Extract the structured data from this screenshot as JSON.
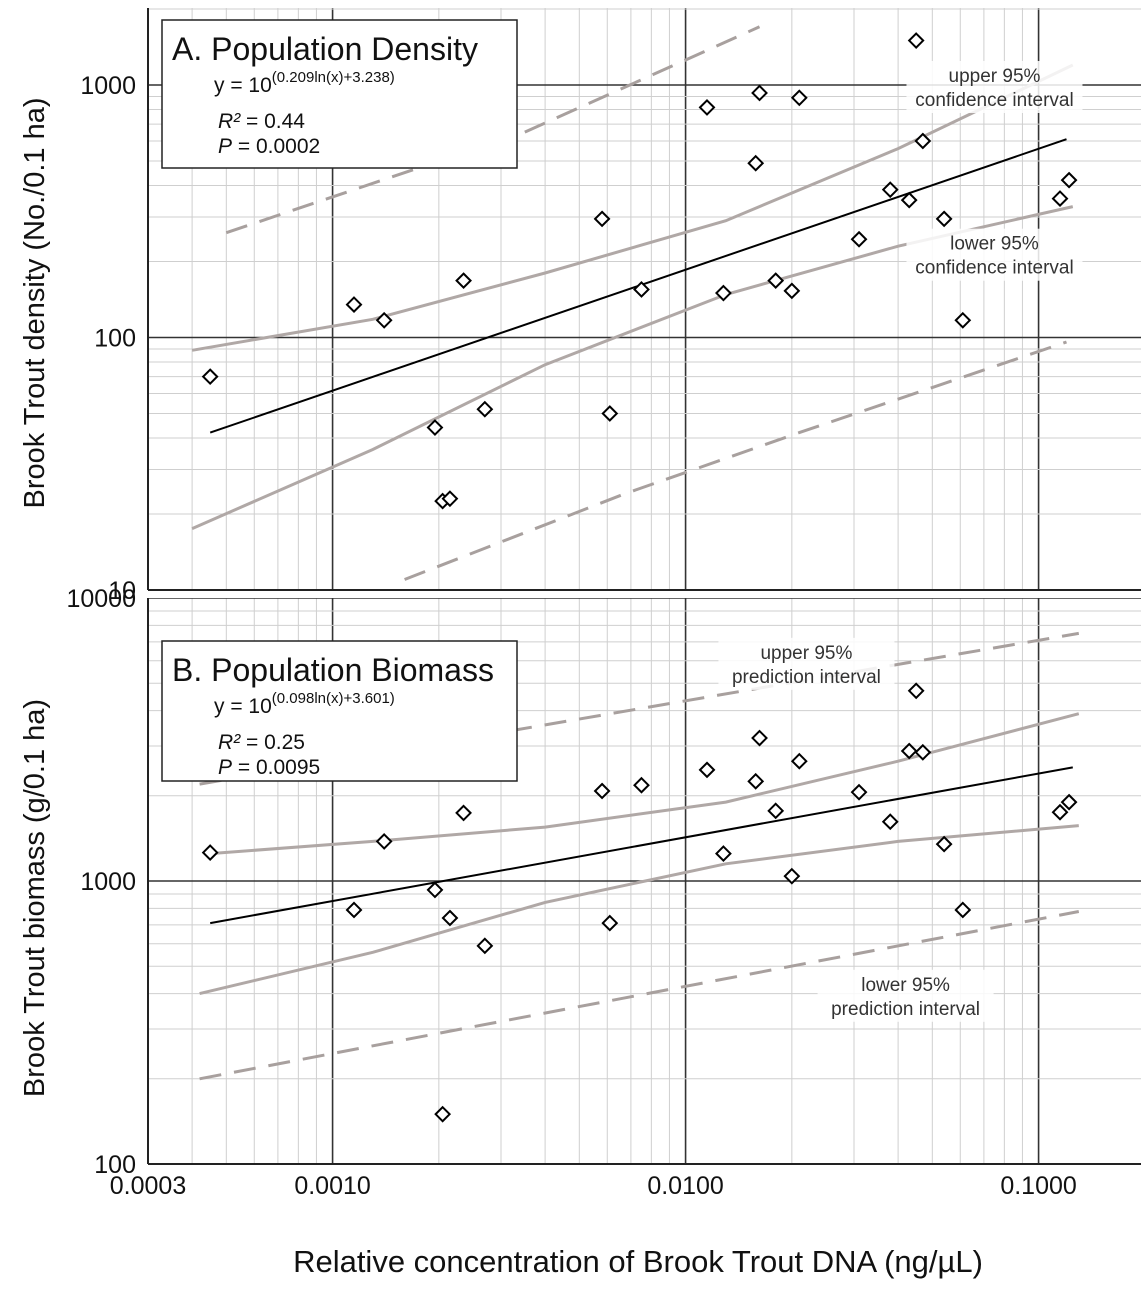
{
  "chart_data": [
    {
      "type": "scatter",
      "panel": "A",
      "title": "A. Population Density",
      "equation": {
        "prefix": "y = 10",
        "exponent": "(0.209ln(x)+3.238)"
      },
      "stats": {
        "r2_label": "R²",
        "r2_value": "= 0.44",
        "p_label": "P",
        "p_value": "= 0.0002"
      },
      "ylabel": "Brook Trout density (No./0.1 ha)",
      "xlabel": "",
      "xscale": "log",
      "yscale": "log",
      "xlim": [
        0.0003,
        0.15
      ],
      "ylim": [
        10,
        2000
      ],
      "ytick_labels": [
        "10",
        "100",
        "1000"
      ],
      "ytick_values": [
        10,
        100,
        1000
      ],
      "grid": true,
      "annotations": [
        {
          "lines": [
            "upper 95%",
            "confidence interval"
          ],
          "x": 0.075,
          "y": 1200
        },
        {
          "lines": [
            "lower 95%",
            "confidence interval"
          ],
          "x": 0.075,
          "y": 260
        }
      ],
      "points": [
        [
          0.00045,
          70
        ],
        [
          0.00115,
          135
        ],
        [
          0.0014,
          117
        ],
        [
          0.00195,
          44
        ],
        [
          0.00205,
          22.5
        ],
        [
          0.00215,
          23
        ],
        [
          0.00235,
          168
        ],
        [
          0.0027,
          52
        ],
        [
          0.0058,
          295
        ],
        [
          0.0061,
          50
        ],
        [
          0.0075,
          155
        ],
        [
          0.0115,
          815
        ],
        [
          0.0128,
          150
        ],
        [
          0.0158,
          490
        ],
        [
          0.0162,
          930
        ],
        [
          0.018,
          168
        ],
        [
          0.02,
          153
        ],
        [
          0.021,
          890
        ],
        [
          0.031,
          245
        ],
        [
          0.038,
          385
        ],
        [
          0.043,
          350
        ],
        [
          0.045,
          1500
        ],
        [
          0.047,
          600
        ],
        [
          0.054,
          295
        ],
        [
          0.061,
          117
        ],
        [
          0.115,
          355
        ],
        [
          0.122,
          420
        ]
      ],
      "series": [
        {
          "role": "regression",
          "x": [
            0.00045,
            0.12
          ],
          "y": [
            42,
            610
          ]
        },
        {
          "role": "upper_confidence",
          "x": [
            0.0004,
            0.0013,
            0.004,
            0.013,
            0.04,
            0.125
          ],
          "y": [
            89,
            118,
            180,
            290,
            560,
            1200
          ]
        },
        {
          "role": "lower_confidence",
          "x": [
            0.0004,
            0.0013,
            0.004,
            0.013,
            0.04,
            0.125
          ],
          "y": [
            17.5,
            36,
            78,
            148,
            230,
            330
          ]
        },
        {
          "role": "upper_prediction",
          "x": [
            0.0005,
            0.0035,
            0.0162
          ],
          "y": [
            260,
            650,
            1700
          ]
        },
        {
          "role": "lower_prediction",
          "x": [
            0.0016,
            0.0067,
            0.021,
            0.12
          ],
          "y": [
            11,
            24,
            42,
            96
          ]
        }
      ]
    },
    {
      "type": "scatter",
      "panel": "B",
      "title": "B. Population Biomass",
      "equation": {
        "prefix": "y = 10",
        "exponent": "(0.098ln(x)+3.601)"
      },
      "stats": {
        "r2_label": "R²",
        "r2_value": "= 0.25",
        "p_label": "P",
        "p_value": "= 0.0095"
      },
      "ylabel": "Brook Trout biomass (g/0.1 ha)",
      "xlabel": "Relative concentration of Brook Trout DNA (ng/µL)",
      "xscale": "log",
      "yscale": "log",
      "xlim": [
        0.0003,
        0.15
      ],
      "ylim": [
        100,
        10000
      ],
      "ytick_labels": [
        "100",
        "1000",
        "10000"
      ],
      "ytick_values": [
        100,
        1000,
        10000
      ],
      "xtick_labels": [
        "0.0003",
        "0.0010",
        "0.0100",
        "0.1000"
      ],
      "xtick_values": [
        0.0003,
        0.001,
        0.01,
        0.1
      ],
      "grid": true,
      "annotations": [
        {
          "lines": [
            "upper 95%",
            "prediction interval"
          ],
          "x": 0.022,
          "y": 7000
        },
        {
          "lines": [
            "lower 95%",
            "prediction interval"
          ],
          "x": 0.042,
          "y": 470
        }
      ],
      "points": [
        [
          0.00045,
          1260
        ],
        [
          0.00115,
          790
        ],
        [
          0.0014,
          1380
        ],
        [
          0.00195,
          930
        ],
        [
          0.00205,
          150
        ],
        [
          0.00215,
          740
        ],
        [
          0.00235,
          1740
        ],
        [
          0.0027,
          590
        ],
        [
          0.0058,
          2080
        ],
        [
          0.0061,
          710
        ],
        [
          0.0075,
          2180
        ],
        [
          0.0115,
          2470
        ],
        [
          0.0128,
          1250
        ],
        [
          0.0158,
          2250
        ],
        [
          0.0162,
          3200
        ],
        [
          0.018,
          1770
        ],
        [
          0.02,
          1040
        ],
        [
          0.021,
          2650
        ],
        [
          0.031,
          2060
        ],
        [
          0.038,
          1620
        ],
        [
          0.043,
          2880
        ],
        [
          0.045,
          4700
        ],
        [
          0.047,
          2850
        ],
        [
          0.054,
          1350
        ],
        [
          0.061,
          790
        ],
        [
          0.115,
          1750
        ],
        [
          0.122,
          1900
        ]
      ],
      "series": [
        {
          "role": "regression",
          "x": [
            0.00045,
            0.125
          ],
          "y": [
            710,
            2520
          ]
        },
        {
          "role": "upper_confidence",
          "x": [
            0.00045,
            0.0013,
            0.004,
            0.013,
            0.04,
            0.13
          ],
          "y": [
            1250,
            1380,
            1550,
            1900,
            2650,
            3900
          ]
        },
        {
          "role": "lower_confidence",
          "x": [
            0.00042,
            0.0013,
            0.004,
            0.013,
            0.04,
            0.13
          ],
          "y": [
            400,
            560,
            840,
            1150,
            1380,
            1570
          ]
        },
        {
          "role": "upper_prediction",
          "x": [
            0.00042,
            0.13
          ],
          "y": [
            2200,
            7500
          ]
        },
        {
          "role": "lower_prediction",
          "x": [
            0.00042,
            0.13
          ],
          "y": [
            200,
            780
          ]
        }
      ]
    }
  ],
  "colors": {
    "regression": "#000000",
    "confidence": "#b0a8a6",
    "prediction": "#a8a09e",
    "grid_major": "#333333",
    "grid_minor": "#cfcfcf"
  }
}
